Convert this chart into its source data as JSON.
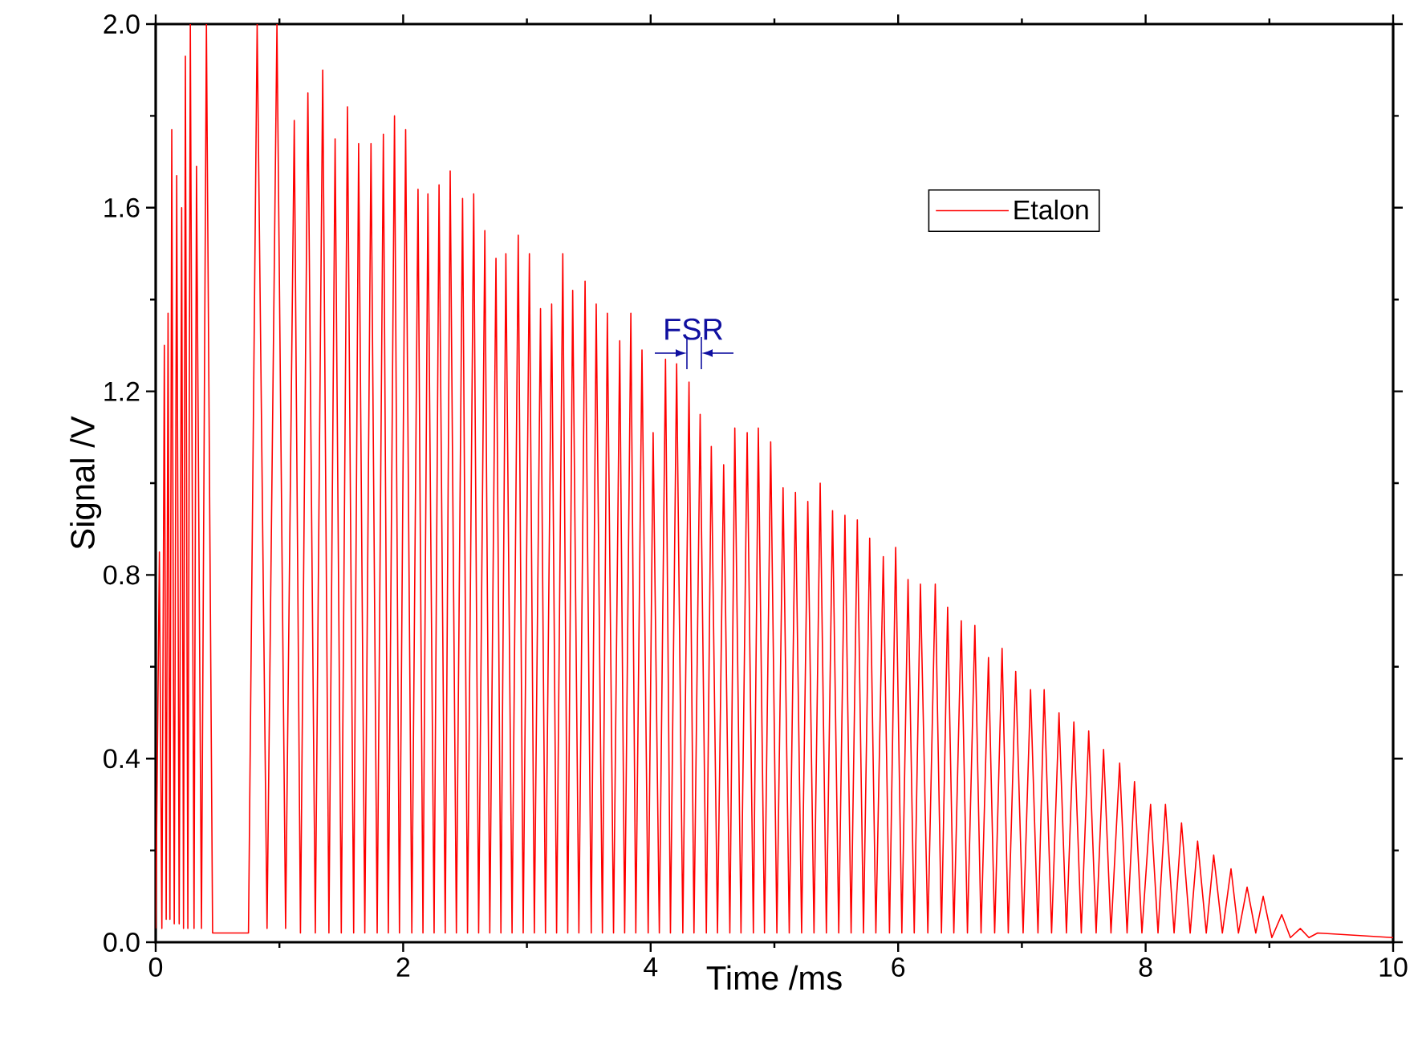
{
  "chart_data": {
    "type": "line",
    "xlabel": "Time /ms",
    "ylabel": "Signal /V",
    "xlim": [
      0,
      10
    ],
    "xticks": [
      0,
      2,
      4,
      6,
      8,
      10
    ],
    "ylim": [
      0,
      2.0
    ],
    "yticks": [
      {
        "value": 0,
        "label": "0.0"
      },
      {
        "value": 0.4,
        "label": "0.4"
      },
      {
        "value": 0.8,
        "label": "0.8"
      },
      {
        "value": 1.2,
        "label": "1.2"
      },
      {
        "value": 1.6,
        "label": "1.6"
      },
      {
        "value": 2.0,
        "label": "2.0"
      }
    ],
    "legend": "top right",
    "grid": false,
    "annotations": [
      "FSR"
    ],
    "series": [
      {
        "name": "Etalon",
        "color": "#ff0000",
        "x": [
          0.0,
          0.03,
          0.05,
          0.07,
          0.085,
          0.1,
          0.115,
          0.13,
          0.15,
          0.17,
          0.19,
          0.21,
          0.225,
          0.24,
          0.26,
          0.28,
          0.31,
          0.33,
          0.37,
          0.41,
          0.46,
          0.75,
          0.82,
          0.9,
          0.98,
          1.05,
          1.12,
          1.17,
          1.23,
          1.29,
          1.35,
          1.4,
          1.45,
          1.5,
          1.55,
          1.6,
          1.64,
          1.69,
          1.74,
          1.79,
          1.84,
          1.88,
          1.93,
          1.97,
          2.02,
          2.07,
          2.12,
          2.16,
          2.2,
          2.25,
          2.29,
          2.34,
          2.38,
          2.43,
          2.48,
          2.52,
          2.57,
          2.61,
          2.66,
          2.7,
          2.75,
          2.79,
          2.83,
          2.88,
          2.93,
          2.97,
          3.02,
          3.06,
          3.11,
          3.15,
          3.2,
          3.24,
          3.29,
          3.33,
          3.37,
          3.42,
          3.47,
          3.52,
          3.56,
          3.61,
          3.65,
          3.7,
          3.75,
          3.79,
          3.84,
          3.88,
          3.93,
          3.98,
          4.02,
          4.07,
          4.12,
          4.16,
          4.21,
          4.26,
          4.31,
          4.35,
          4.4,
          4.45,
          4.49,
          4.54,
          4.59,
          4.64,
          4.68,
          4.73,
          4.78,
          4.83,
          4.87,
          4.92,
          4.97,
          5.02,
          5.07,
          5.12,
          5.17,
          5.22,
          5.27,
          5.32,
          5.37,
          5.42,
          5.47,
          5.52,
          5.57,
          5.62,
          5.67,
          5.72,
          5.77,
          5.82,
          5.88,
          5.93,
          5.98,
          6.03,
          6.08,
          6.13,
          6.18,
          6.24,
          6.3,
          6.35,
          6.4,
          6.45,
          6.51,
          6.56,
          6.62,
          6.67,
          6.73,
          6.78,
          6.84,
          6.89,
          6.95,
          7.01,
          7.07,
          7.13,
          7.18,
          7.24,
          7.3,
          7.36,
          7.42,
          7.48,
          7.54,
          7.6,
          7.66,
          7.72,
          7.79,
          7.85,
          7.91,
          7.97,
          8.04,
          8.1,
          8.16,
          8.23,
          8.29,
          8.36,
          8.42,
          8.49,
          8.55,
          8.62,
          8.69,
          8.75,
          8.82,
          8.89,
          8.95,
          9.02,
          9.1,
          9.17,
          9.25,
          9.32,
          9.39,
          10.0
        ],
        "values": [
          0.03,
          0.85,
          0.03,
          1.3,
          0.05,
          1.37,
          0.05,
          1.77,
          0.04,
          1.67,
          0.04,
          1.6,
          0.03,
          1.93,
          0.03,
          2.0,
          0.03,
          1.69,
          0.03,
          2.0,
          0.02,
          0.02,
          2.0,
          0.03,
          2.0,
          0.03,
          1.79,
          0.02,
          1.85,
          0.02,
          1.9,
          0.02,
          1.75,
          0.02,
          1.82,
          0.02,
          1.74,
          0.02,
          1.74,
          0.02,
          1.76,
          0.02,
          1.8,
          0.02,
          1.77,
          0.02,
          1.64,
          0.02,
          1.63,
          0.02,
          1.65,
          0.02,
          1.68,
          0.02,
          1.62,
          0.02,
          1.63,
          0.02,
          1.55,
          0.02,
          1.49,
          0.02,
          1.5,
          0.02,
          1.54,
          0.02,
          1.5,
          0.02,
          1.38,
          0.02,
          1.39,
          0.02,
          1.5,
          0.02,
          1.42,
          0.02,
          1.44,
          0.02,
          1.39,
          0.02,
          1.37,
          0.02,
          1.31,
          0.02,
          1.37,
          0.02,
          1.29,
          0.02,
          1.11,
          0.02,
          1.27,
          0.02,
          1.26,
          0.02,
          1.22,
          0.02,
          1.15,
          0.02,
          1.08,
          0.02,
          1.04,
          0.02,
          1.12,
          0.02,
          1.11,
          0.02,
          1.12,
          0.02,
          1.09,
          0.02,
          0.99,
          0.02,
          0.98,
          0.02,
          0.96,
          0.02,
          1.0,
          0.02,
          0.94,
          0.02,
          0.93,
          0.02,
          0.92,
          0.02,
          0.88,
          0.02,
          0.84,
          0.02,
          0.86,
          0.02,
          0.79,
          0.02,
          0.78,
          0.02,
          0.78,
          0.02,
          0.73,
          0.02,
          0.7,
          0.02,
          0.69,
          0.02,
          0.62,
          0.02,
          0.64,
          0.02,
          0.59,
          0.02,
          0.55,
          0.02,
          0.55,
          0.02,
          0.5,
          0.02,
          0.48,
          0.02,
          0.46,
          0.02,
          0.42,
          0.02,
          0.39,
          0.02,
          0.35,
          0.02,
          0.3,
          0.02,
          0.3,
          0.02,
          0.26,
          0.02,
          0.22,
          0.02,
          0.19,
          0.02,
          0.16,
          0.02,
          0.12,
          0.02,
          0.1,
          0.01,
          0.06,
          0.01,
          0.03,
          0.01,
          0.02,
          0.01
        ]
      }
    ]
  }
}
